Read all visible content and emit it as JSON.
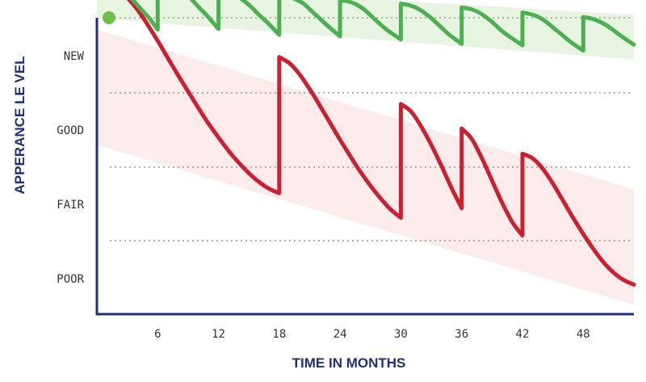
{
  "chart_data": {
    "type": "line",
    "xlabel": "TIME IN MONTHS",
    "ylabel": "APPERANCE LE VEL",
    "x_ticks": [
      "6",
      "12",
      "18",
      "24",
      "30",
      "36",
      "42",
      "48"
    ],
    "y_ticks": [
      "NEW",
      "GOOD",
      "FAIR",
      "POOR"
    ],
    "xlim": [
      0,
      53
    ],
    "ylim_levels": [
      "POOR",
      "NEW"
    ],
    "grid": "horizontal-dotted",
    "colors": {
      "axis": "#1f2f7a",
      "good_series": "#4caf50",
      "poor_series": "#cc1f2f",
      "good_band": "#e3f2dc",
      "poor_band": "#fbe3e3",
      "grid": "#999999",
      "start_dot": "#6cc04a"
    },
    "bands": {
      "green": {
        "x": [
          0,
          53
        ],
        "upper": [
          3.98,
          3.55
        ],
        "lower": [
          3.5,
          2.95
        ]
      },
      "red": {
        "x": [
          0,
          53
        ],
        "upper": [
          3.35,
          1.2
        ],
        "lower": [
          1.8,
          -0.35
        ]
      }
    },
    "series": [
      {
        "x": [
          0,
          0.5,
          1.2,
          2.0,
          2.8,
          3.6,
          4.4,
          5.2,
          6.0,
          6.0,
          6.8,
          7.6,
          8.4,
          9.2,
          10.0,
          10.8,
          12.0,
          12.0,
          12.8,
          13.6,
          14.4,
          15.2,
          16.0,
          16.8,
          18.0,
          18.0,
          18.8,
          19.6,
          20.4,
          21.2,
          22.0,
          22.8,
          24.0,
          24.0,
          24.8,
          25.6,
          26.4,
          27.2,
          28.0,
          28.8,
          30.0,
          30.0,
          30.8,
          31.6,
          32.4,
          33.2,
          34.0,
          34.8,
          36.0,
          36.0,
          36.8,
          37.6,
          38.4,
          39.2,
          40.0,
          40.8,
          42.0,
          42.0,
          42.8,
          43.6,
          44.4,
          45.2,
          46.0,
          46.8,
          48.0,
          48.0,
          48.8,
          49.6,
          50.4,
          51.2,
          52.0,
          53.0
        ],
        "y": [
          4.0,
          3.99,
          3.97,
          3.92,
          3.84,
          3.74,
          3.62,
          3.5,
          3.35,
          3.98,
          3.96,
          3.92,
          3.86,
          3.78,
          3.66,
          3.55,
          3.36,
          3.87,
          3.85,
          3.81,
          3.75,
          3.66,
          3.55,
          3.45,
          3.28,
          3.82,
          3.8,
          3.76,
          3.7,
          3.6,
          3.5,
          3.4,
          3.26,
          3.75,
          3.73,
          3.69,
          3.62,
          3.52,
          3.42,
          3.33,
          3.22,
          3.7,
          3.68,
          3.64,
          3.57,
          3.48,
          3.38,
          3.28,
          3.16,
          3.65,
          3.63,
          3.59,
          3.52,
          3.43,
          3.33,
          3.25,
          3.14,
          3.58,
          3.56,
          3.52,
          3.45,
          3.36,
          3.27,
          3.18,
          3.07,
          3.52,
          3.5,
          3.46,
          3.4,
          3.32,
          3.24,
          3.15
        ]
      },
      {
        "x": [
          0,
          1.0,
          2.0,
          3.0,
          4.0,
          5.0,
          6.0,
          7.0,
          8.0,
          9.0,
          10.0,
          11.0,
          12.0,
          13.0,
          14.0,
          15.0,
          16.0,
          17.0,
          18.0,
          18.0,
          19.0,
          20.0,
          21.0,
          22.0,
          23.0,
          24.0,
          25.0,
          26.0,
          27.0,
          28.0,
          29.0,
          30.0,
          30.0,
          31.0,
          32.0,
          33.0,
          34.0,
          35.0,
          36.0,
          36.0,
          37.0,
          38.0,
          39.0,
          40.0,
          41.0,
          42.0,
          42.0,
          43.0,
          44.0,
          45.0,
          46.0,
          47.0,
          48.0,
          49.0,
          50.0,
          51.0,
          52.0,
          53.0
        ],
        "y": [
          4.0,
          3.98,
          3.9,
          3.78,
          3.62,
          3.42,
          3.2,
          2.97,
          2.74,
          2.52,
          2.3,
          2.09,
          1.9,
          1.72,
          1.56,
          1.42,
          1.3,
          1.21,
          1.15,
          2.98,
          2.9,
          2.75,
          2.55,
          2.33,
          2.1,
          1.87,
          1.65,
          1.44,
          1.25,
          1.08,
          0.93,
          0.82,
          2.35,
          2.25,
          2.05,
          1.8,
          1.52,
          1.22,
          0.95,
          2.02,
          1.88,
          1.62,
          1.32,
          1.02,
          0.76,
          0.58,
          1.68,
          1.62,
          1.48,
          1.28,
          1.05,
          0.82,
          0.6,
          0.4,
          0.22,
          0.08,
          -0.02,
          -0.08
        ]
      }
    ]
  }
}
